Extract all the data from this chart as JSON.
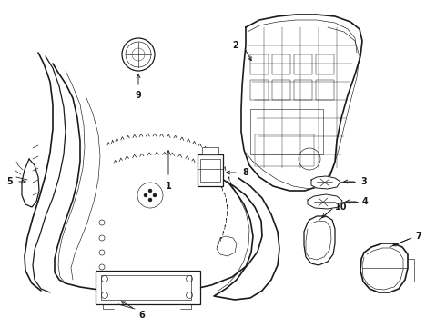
{
  "bg_color": "#ffffff",
  "line_color": "#1a1a1a",
  "fig_width": 4.9,
  "fig_height": 3.6,
  "dpi": 100,
  "font_size": 7,
  "lw_main": 0.9,
  "lw_thin": 0.45,
  "lw_thick": 1.2
}
